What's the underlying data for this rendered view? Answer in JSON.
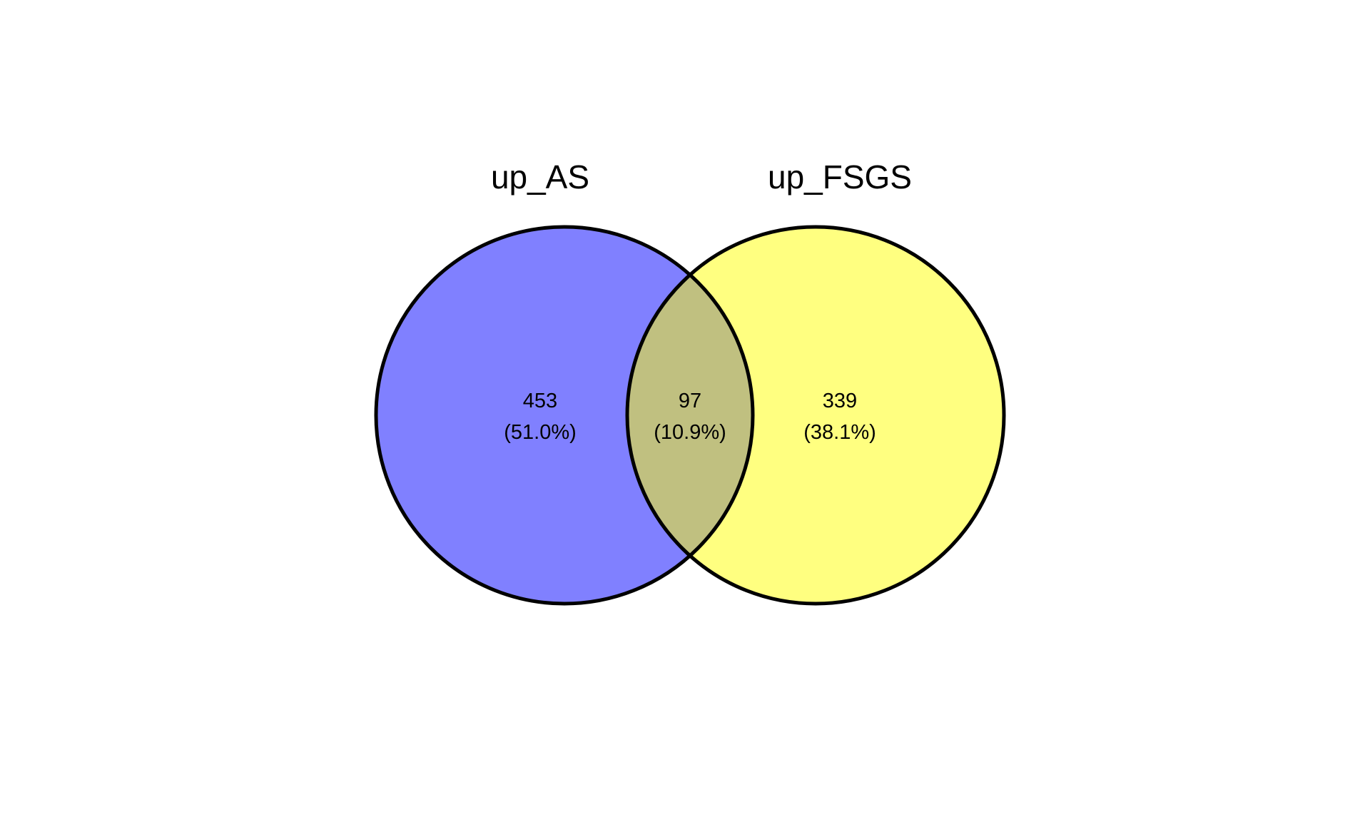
{
  "venn": {
    "sets": [
      {
        "label": "up_AS",
        "color": "#8080ff"
      },
      {
        "label": "up_FSGS",
        "color": "#ffff80"
      }
    ],
    "regions": {
      "only_a": {
        "count": "453",
        "percent": "(51.0%)"
      },
      "overlap": {
        "count": "97",
        "percent": "(10.9%)",
        "color": "#c0c080"
      },
      "only_b": {
        "count": "339",
        "percent": "(38.1%)"
      }
    },
    "outline_color": "#000000"
  }
}
